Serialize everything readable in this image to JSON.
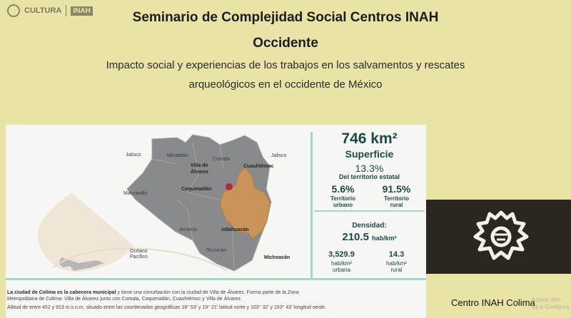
{
  "header": {
    "logo_cultura": "CULTURA",
    "logo_inah": "INAH",
    "title_line1": "Seminario de Complejidad Social Centros INAH",
    "title_line2": "Occidente",
    "subtitle_line1": "Impacto social y experiencias de los trabajos en los salvamentos y rescates",
    "subtitle_line2": "arqueológicos en el occidente de México"
  },
  "map": {
    "labels": {
      "jalisco_w": "Jalisco",
      "minatitlan": "Minatitlán",
      "comala": "Comala",
      "jalisco_e": "Jalisco",
      "villa_alvarez_1": "Villa de",
      "villa_alvarez_2": "Álvarez",
      "cuauhtemoc": "Cuauhtémoc",
      "coquimatlan": "Coquimatlán",
      "manzanillo": "Manzanillo",
      "armeria": "Armería",
      "ixtlahuacan": "Ixtlahuacán",
      "oceano_1": "Océano",
      "oceano_2": "Pacífico",
      "tecoman": "Tecomán",
      "michoacan": "Michoacán"
    },
    "colors": {
      "municipio": "#888a8c",
      "colima": "#c9945a",
      "city_dot": "#b3283c",
      "accent": "#9fd8c7"
    }
  },
  "stats": {
    "area": "746 km²",
    "superficie": "Superficie",
    "pct_state": "13.3%",
    "pct_state_label": "Del territorio estatal",
    "urban_pct": "5.6%",
    "urban_label_1": "Territorio",
    "urban_label_2": "urbano",
    "rural_pct": "91.5%",
    "rural_label_1": "Territorio",
    "rural_label_2": "rural",
    "density_label": "Densidad:",
    "density_value": "210.5",
    "density_unit": "hab/km²",
    "urban_density": "3,529.9",
    "urban_density_unit": "hab/km²",
    "urban_density_label": "urbana",
    "rural_density": "14.3",
    "rural_density_unit": "hab/km²",
    "rural_density_label": "rural"
  },
  "caption": {
    "bold": "La ciudad de Colima es la cabecera municipal",
    "line1_rest": " y tiene una conurbación con la ciudad de Villa de Álvarez. Forma parte de la Zona",
    "line2": "Metropolitana de Colima- Villa de Álvarez junto con Comala, Coquimatlán, Cuauhtémoc y Villa de Álvarez.",
    "line3": "Altitud de entre 452 y 913 m.s.n.m, situado entre las coordenadas geográficas 18° 53' y 19° 21' latitud norte y 103° 32' y 103° 43' longitud oeste."
  },
  "footer": {
    "center_label": "Centro INAH Colima",
    "watermark_1": "Activar Win",
    "watermark_2": "Ve a Configura"
  }
}
